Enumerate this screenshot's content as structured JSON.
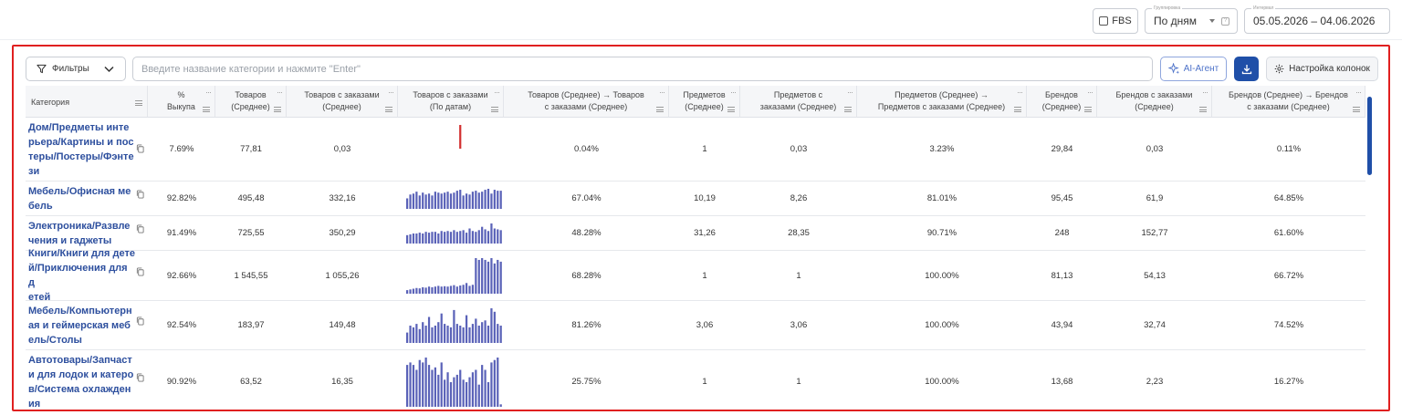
{
  "topbar": {
    "fbs_label": "FBS",
    "grouping_label": "Группировка",
    "grouping_value": "По дням",
    "interval_label": "Интервал",
    "interval_value": "05.05.2026 – 04.06.2026"
  },
  "toolbar": {
    "filters_label": "Фильтры",
    "search_placeholder": "Введите название категории и нажмите \"Enter\"",
    "ai_label": "AI-Агент",
    "columns_label": "Настройка колонок"
  },
  "columns": [
    "Категория",
    "% Выкупа",
    "Товаров (Среднее)",
    "Товаров с заказами (Среднее)",
    "Товаров с заказами (По датам)",
    "Товаров (Среднее) → Товаров с заказами (Среднее)",
    "Предметов (Среднее)",
    "Предметов с заказами (Среднее)",
    "Предметов (Среднее) → Предметов с заказами (Среднее)",
    "Брендов (Среднее)",
    "Брендов с заказами (Среднее)",
    "Брендов (Среднее) → Брендов с заказами (Среднее)"
  ],
  "rows": [
    {
      "category": "Дом/Предметы интерьера/Картины и постеры/Постеры/Фэнтези",
      "buyout": "7.69%",
      "goods": "77,81",
      "goods_orders": "0,03",
      "conv_goods": "0.04%",
      "items": "1",
      "items_orders": "0,03",
      "conv_items": "3.23%",
      "brands": "29,84",
      "brands_orders": "0,03",
      "conv_brands": "0.11%",
      "spark": [
        0,
        0,
        0,
        0,
        0,
        0,
        0,
        0,
        0,
        0,
        0,
        0,
        0,
        0,
        0,
        0,
        0,
        1,
        0,
        0,
        0,
        0,
        0,
        0,
        0,
        0,
        0,
        0,
        0,
        0,
        0
      ],
      "spark_color": "#d23030"
    },
    {
      "category": "Мебель/Офисная мебель",
      "buyout": "92.82%",
      "goods": "495,48",
      "goods_orders": "332,16",
      "conv_goods": "67.04%",
      "items": "10,19",
      "items_orders": "8,26",
      "conv_items": "81.01%",
      "brands": "95,45",
      "brands_orders": "61,9",
      "conv_brands": "64.85%",
      "spark": [
        0.55,
        0.75,
        0.8,
        0.9,
        0.7,
        0.85,
        0.75,
        0.8,
        0.7,
        0.9,
        0.85,
        0.8,
        0.85,
        0.9,
        0.8,
        0.85,
        0.95,
        1.0,
        0.7,
        0.8,
        0.75,
        0.9,
        0.95,
        0.85,
        0.9,
        1.0,
        1.05,
        0.8,
        1.0,
        0.95,
        0.95
      ],
      "spark_color": "#5a62b8"
    },
    {
      "category": "Электроника/Развлечения и гаджеты",
      "buyout": "91.49%",
      "goods": "725,55",
      "goods_orders": "350,29",
      "conv_goods": "48.28%",
      "items": "31,26",
      "items_orders": "28,35",
      "conv_items": "90.71%",
      "brands": "248",
      "brands_orders": "152,77",
      "conv_brands": "61.60%",
      "spark": [
        0.5,
        0.55,
        0.6,
        0.6,
        0.65,
        0.6,
        0.7,
        0.65,
        0.7,
        0.7,
        0.6,
        0.75,
        0.7,
        0.75,
        0.7,
        0.8,
        0.7,
        0.75,
        0.8,
        0.65,
        0.9,
        0.75,
        0.7,
        0.8,
        1.0,
        0.85,
        0.75,
        1.2,
        0.9,
        0.85,
        0.8
      ],
      "spark_color": "#5a62b8"
    },
    {
      "category": "Книги/Книги для детей/Приключения для детей",
      "buyout": "92.66%",
      "goods": "1 545,55",
      "goods_orders": "1 055,26",
      "conv_goods": "68.28%",
      "items": "1",
      "items_orders": "1",
      "conv_items": "100.00%",
      "brands": "81,13",
      "brands_orders": "54,13",
      "conv_brands": "66.72%",
      "spark": [
        0.1,
        0.12,
        0.14,
        0.16,
        0.15,
        0.18,
        0.17,
        0.2,
        0.18,
        0.2,
        0.22,
        0.2,
        0.21,
        0.2,
        0.22,
        0.24,
        0.2,
        0.23,
        0.25,
        0.3,
        0.22,
        0.25,
        1.0,
        0.95,
        1.0,
        0.95,
        0.9,
        1.0,
        0.85,
        0.95,
        0.9
      ],
      "spark_color": "#5a62b8"
    },
    {
      "category": "Мебель/Компьютерная и геймерская мебель/Столы",
      "buyout": "92.54%",
      "goods": "183,97",
      "goods_orders": "149,48",
      "conv_goods": "81.26%",
      "items": "3,06",
      "items_orders": "3,06",
      "conv_items": "100.00%",
      "brands": "43,94",
      "brands_orders": "32,74",
      "conv_brands": "74.52%",
      "spark": [
        0.3,
        0.5,
        0.45,
        0.55,
        0.4,
        0.6,
        0.5,
        0.75,
        0.45,
        0.5,
        0.6,
        0.85,
        0.55,
        0.5,
        0.45,
        0.95,
        0.55,
        0.5,
        0.45,
        0.8,
        0.45,
        0.55,
        0.7,
        0.5,
        0.6,
        0.65,
        0.5,
        1.0,
        0.9,
        0.55,
        0.5
      ],
      "spark_color": "#5a62b8"
    },
    {
      "category": "Автотовары/Запчасти для лодок и катеров/Система охлаждения",
      "buyout": "90.92%",
      "goods": "63,52",
      "goods_orders": "16,35",
      "conv_goods": "25.75%",
      "items": "1",
      "items_orders": "1",
      "conv_items": "100.00%",
      "brands": "13,68",
      "brands_orders": "2,23",
      "conv_brands": "16.27%",
      "spark": [
        0.85,
        0.9,
        0.85,
        0.75,
        0.95,
        0.9,
        1.0,
        0.85,
        0.75,
        0.8,
        0.65,
        0.9,
        0.55,
        0.7,
        0.5,
        0.6,
        0.65,
        0.75,
        0.55,
        0.5,
        0.6,
        0.7,
        0.75,
        0.45,
        0.85,
        0.75,
        0.5,
        0.9,
        0.95,
        1.0,
        0.05
      ],
      "spark_color": "#5a62b8"
    }
  ]
}
